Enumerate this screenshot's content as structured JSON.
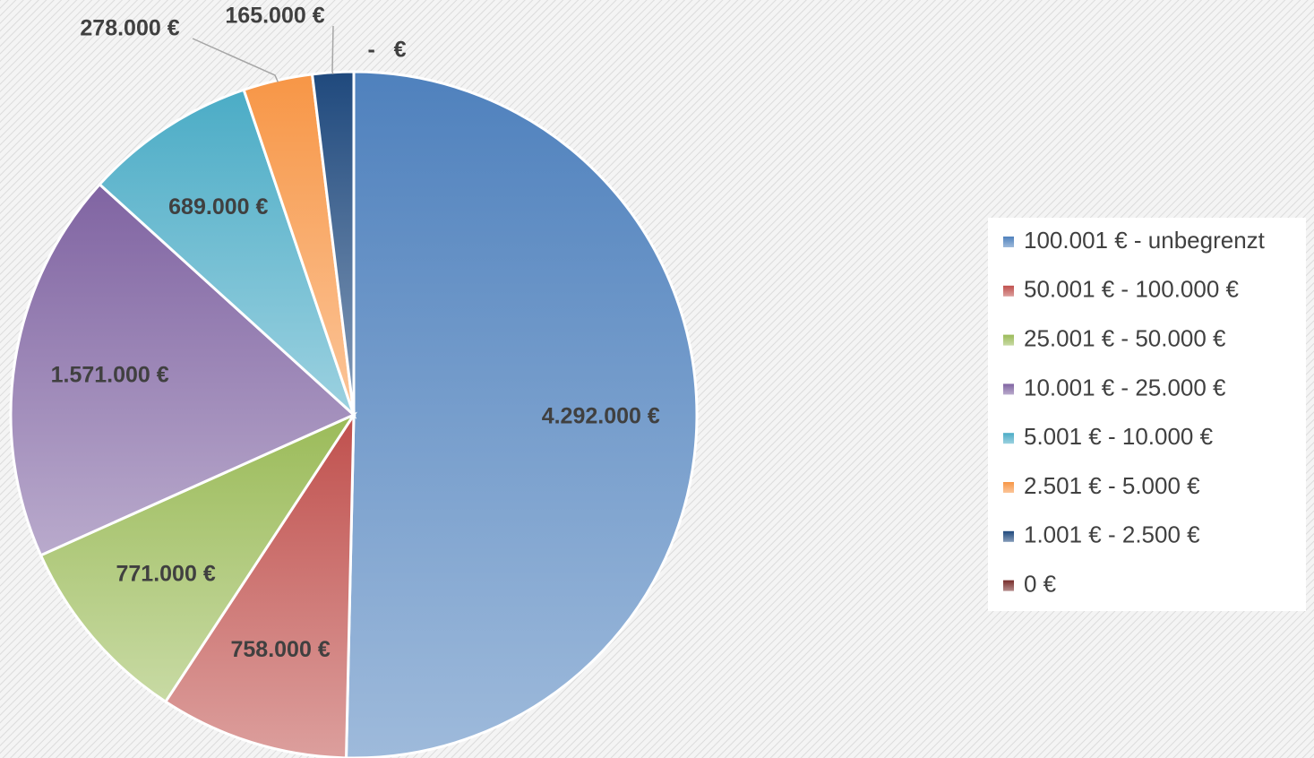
{
  "chart_data": {
    "type": "pie",
    "categories": [
      "100.001 € - unbegrenzt",
      "50.001 € - 100.000 €",
      "25.001 € - 50.000 €",
      "10.001 € - 25.000 €",
      "5.001 € - 10.000 €",
      "2.501 € - 5.000 €",
      "1.001 € - 2.500 €",
      "0 €"
    ],
    "values": [
      4292000,
      758000,
      771000,
      1571000,
      689000,
      278000,
      165000,
      0
    ],
    "value_labels": [
      "4.292.000 €",
      "758.000 €",
      "771.000 €",
      "1.571.000 €",
      "689.000 €",
      "278.000 €",
      "165.000 €",
      "-   €"
    ],
    "colors": [
      "#4f81bd",
      "#c0504d",
      "#9bbb59",
      "#8064a2",
      "#4bacc6",
      "#f79646",
      "#1f497d",
      "#772c2a"
    ],
    "legend": "right"
  }
}
